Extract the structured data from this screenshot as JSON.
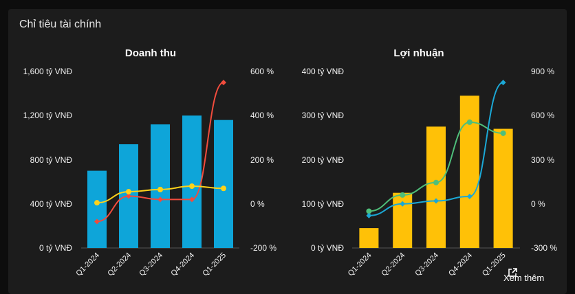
{
  "section_title": "Chỉ tiêu tài chính",
  "more_label": "Xem thêm",
  "colors": {
    "revenue_bar": "#0ea5d9",
    "profit_bar": "#ffc107",
    "red_line": "#f24c3d",
    "yellow_line": "#ffd21a",
    "green_line": "#4fbf7a",
    "blue_line": "#1ba8d6"
  },
  "chart_data": [
    {
      "type": "bar",
      "title": "Doanh thu",
      "categories": [
        "Q1-2024",
        "Q2-2024",
        "Q3-2024",
        "Q4-2024",
        "Q1-2025"
      ],
      "y_left_ticks": [
        "0 tỷ VNĐ",
        "400 tỷ VNĐ",
        "800 tỷ VNĐ",
        "1,200 tỷ VNĐ",
        "1,600 tỷ VNĐ"
      ],
      "y_right_ticks": [
        "-200 %",
        "0 %",
        "200 %",
        "400 %",
        "600 %"
      ],
      "ylim_left": [
        0,
        1600
      ],
      "ylim_right": [
        -200,
        600
      ],
      "bars": {
        "values": [
          700,
          940,
          1120,
          1200,
          1160
        ],
        "color": "#0ea5d9"
      },
      "lines": [
        {
          "values": [
            -80,
            35,
            20,
            20,
            550
          ],
          "color": "#f24c3d",
          "marker": "diamond"
        },
        {
          "values": [
            5,
            55,
            65,
            80,
            70
          ],
          "color": "#ffd21a",
          "marker": "circle"
        }
      ]
    },
    {
      "type": "bar",
      "title": "Lợi nhuận",
      "categories": [
        "Q1-2024",
        "Q2-2024",
        "Q3-2024",
        "Q4-2024",
        "Q1-2025"
      ],
      "y_left_ticks": [
        "0 tỷ VNĐ",
        "100 tỷ VNĐ",
        "200 tỷ VNĐ",
        "300 tỷ VNĐ",
        "400 tỷ VNĐ"
      ],
      "y_right_ticks": [
        "-300 %",
        "0 %",
        "300 %",
        "600 %",
        "900 %"
      ],
      "ylim_left": [
        0,
        400
      ],
      "ylim_right": [
        -300,
        900
      ],
      "bars": {
        "values": [
          45,
          125,
          275,
          345,
          270
        ],
        "color": "#ffc107"
      },
      "lines": [
        {
          "values": [
            -50,
            60,
            145,
            555,
            480
          ],
          "color": "#4fbf7a",
          "marker": "circle"
        },
        {
          "values": [
            -80,
            0,
            20,
            50,
            825
          ],
          "color": "#1ba8d6",
          "marker": "diamond"
        }
      ]
    }
  ]
}
